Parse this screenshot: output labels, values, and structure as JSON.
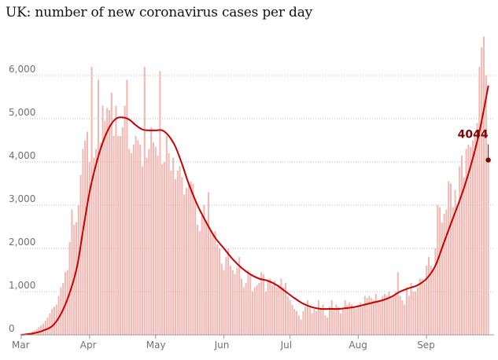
{
  "title": "UK: number of new coronavirus cases per day",
  "colors": {
    "bars": "#f3b7b2",
    "trend": "#c70000",
    "label": "#7d0506",
    "grid": "#bdbdbd",
    "text": "#707070"
  },
  "chart_data": {
    "type": "bar",
    "title": "UK: number of new coronavirus cases per day",
    "xlabel": "",
    "ylabel": "",
    "ylim": [
      0,
      7000
    ],
    "y_ticks": [
      0,
      1000,
      2000,
      3000,
      4000,
      5000,
      6000
    ],
    "y_tick_labels": [
      "0",
      "1,000",
      "2,000",
      "3,000",
      "4,000",
      "5,000",
      "6,000"
    ],
    "x_ticks": [
      {
        "label": "Mar",
        "day": 0
      },
      {
        "label": "Apr",
        "day": 31
      },
      {
        "label": "May",
        "day": 61
      },
      {
        "label": "Jun",
        "day": 92
      },
      {
        "label": "Jul",
        "day": 122
      },
      {
        "label": "Aug",
        "day": 153
      },
      {
        "label": "Sep",
        "day": 184
      }
    ],
    "grid": true,
    "bar_series": {
      "start_day": 0,
      "values": [
        10,
        20,
        30,
        40,
        50,
        70,
        100,
        130,
        180,
        220,
        260,
        330,
        400,
        500,
        600,
        650,
        700,
        900,
        1100,
        1200,
        1450,
        1500,
        2150,
        2900,
        2550,
        2600,
        3000,
        3700,
        4300,
        4500,
        4700,
        4000,
        6200,
        4100,
        4300,
        5900,
        4450,
        5300,
        4950,
        5250,
        5200,
        5600,
        4600,
        5300,
        4600,
        4600,
        4800,
        5300,
        5900,
        4300,
        4200,
        4400,
        4600,
        4500,
        4400,
        3900,
        6200,
        4100,
        4300,
        4800,
        4450,
        4350,
        4150,
        6100,
        3950,
        4000,
        4600,
        4200,
        3800,
        4100,
        3600,
        3800,
        3900,
        3650,
        3250,
        3400,
        3450,
        3550,
        3500,
        3100,
        2550,
        2400,
        2750,
        3000,
        2650,
        3300,
        2400,
        2300,
        2400,
        2100,
        2000,
        1650,
        1500,
        1800,
        2000,
        1600,
        1500,
        1400,
        1550,
        1800,
        1300,
        1100,
        1200,
        1500,
        1400,
        1000,
        1100,
        1150,
        1200,
        1450,
        1400,
        1000,
        1250,
        1300,
        1150,
        1250,
        1100,
        1150,
        1300,
        1100,
        1200,
        900,
        800,
        700,
        600,
        550,
        450,
        350,
        550,
        650,
        800,
        650,
        500,
        600,
        550,
        800,
        600,
        700,
        450,
        400,
        650,
        800,
        600,
        700,
        650,
        500,
        600,
        800,
        700,
        750,
        700,
        650,
        600,
        700,
        750,
        650,
        900,
        850,
        900,
        850,
        800,
        950,
        800,
        800,
        900,
        950,
        900,
        1000,
        850,
        900,
        1000,
        1450,
        900,
        800,
        700,
        1100,
        900,
        1200,
        1000,
        1000,
        1100,
        1300,
        1300,
        1200,
        1600,
        1800,
        1600,
        1500,
        2000,
        3000,
        2950,
        2600,
        2800,
        2900,
        3550,
        3500,
        2950,
        3350,
        3000,
        3900,
        4150,
        3650,
        4300,
        4400,
        4350,
        4500,
        4600,
        4900,
        6200,
        6650,
        6900,
        6000,
        4044
      ],
      "latest_value": 4044,
      "latest_label": "4044"
    },
    "trend_series": {
      "name": "",
      "points": [
        [
          0,
          0
        ],
        [
          5,
          30
        ],
        [
          10,
          100
        ],
        [
          15,
          250
        ],
        [
          20,
          700
        ],
        [
          25,
          1500
        ],
        [
          28,
          2400
        ],
        [
          31,
          3300
        ],
        [
          34,
          3950
        ],
        [
          37,
          4450
        ],
        [
          40,
          4800
        ],
        [
          43,
          5000
        ],
        [
          46,
          5030
        ],
        [
          49,
          4980
        ],
        [
          52,
          4850
        ],
        [
          55,
          4750
        ],
        [
          58,
          4730
        ],
        [
          61,
          4730
        ],
        [
          64,
          4730
        ],
        [
          67,
          4600
        ],
        [
          70,
          4350
        ],
        [
          73,
          3950
        ],
        [
          76,
          3500
        ],
        [
          80,
          3000
        ],
        [
          84,
          2600
        ],
        [
          88,
          2250
        ],
        [
          92,
          2000
        ],
        [
          96,
          1750
        ],
        [
          100,
          1550
        ],
        [
          104,
          1400
        ],
        [
          108,
          1300
        ],
        [
          112,
          1250
        ],
        [
          116,
          1150
        ],
        [
          120,
          1000
        ],
        [
          124,
          850
        ],
        [
          128,
          720
        ],
        [
          132,
          640
        ],
        [
          136,
          600
        ],
        [
          140,
          600
        ],
        [
          144,
          600
        ],
        [
          148,
          620
        ],
        [
          152,
          650
        ],
        [
          156,
          700
        ],
        [
          160,
          750
        ],
        [
          164,
          800
        ],
        [
          168,
          880
        ],
        [
          172,
          1000
        ],
        [
          176,
          1080
        ],
        [
          180,
          1150
        ],
        [
          184,
          1300
        ],
        [
          188,
          1600
        ],
        [
          192,
          2150
        ],
        [
          196,
          2700
        ],
        [
          200,
          3250
        ],
        [
          204,
          3900
        ],
        [
          208,
          4700
        ],
        [
          212,
          5750
        ]
      ]
    }
  }
}
